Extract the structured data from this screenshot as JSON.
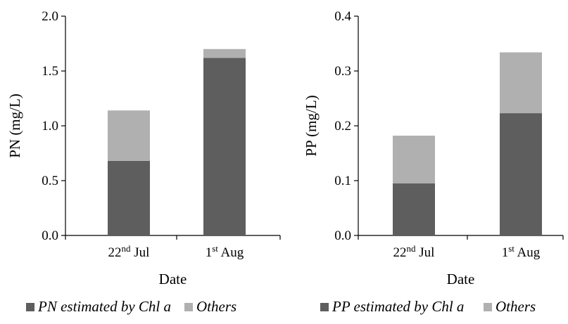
{
  "colors": {
    "estimated": "#5e5e5e",
    "others": "#b0b0b0",
    "axis": "#000000"
  },
  "chart_data": [
    {
      "type": "bar",
      "stacked": true,
      "categories": [
        {
          "main": "22",
          "sup": "nd",
          "rest": " Jul"
        },
        {
          "main": "1",
          "sup": "st",
          "rest": " Aug"
        }
      ],
      "series": [
        {
          "name": "PN estimated by Chl a",
          "values": [
            0.68,
            1.62
          ]
        },
        {
          "name": "Others",
          "values": [
            0.46,
            0.08
          ]
        }
      ],
      "xlabel": "Date",
      "ylabel": "PN (mg/L)",
      "ylim": [
        0,
        2.0
      ],
      "yticks": [
        "0.0",
        "0.5",
        "1.0",
        "1.5",
        "2.0"
      ],
      "grid": false,
      "legend": "bottom"
    },
    {
      "type": "bar",
      "stacked": true,
      "categories": [
        {
          "main": "22",
          "sup": "nd",
          "rest": " Jul"
        },
        {
          "main": "1",
          "sup": "st",
          "rest": " Aug"
        }
      ],
      "series": [
        {
          "name": "PP estimated by Chl a",
          "values": [
            0.095,
            0.223
          ]
        },
        {
          "name": "Others",
          "values": [
            0.087,
            0.111
          ]
        }
      ],
      "xlabel": "Date",
      "ylabel": "PP (mg/L)",
      "ylim": [
        0,
        0.4
      ],
      "yticks": [
        "0.0",
        "0.1",
        "0.2",
        "0.3",
        "0.4"
      ],
      "grid": false,
      "legend": "bottom"
    }
  ]
}
